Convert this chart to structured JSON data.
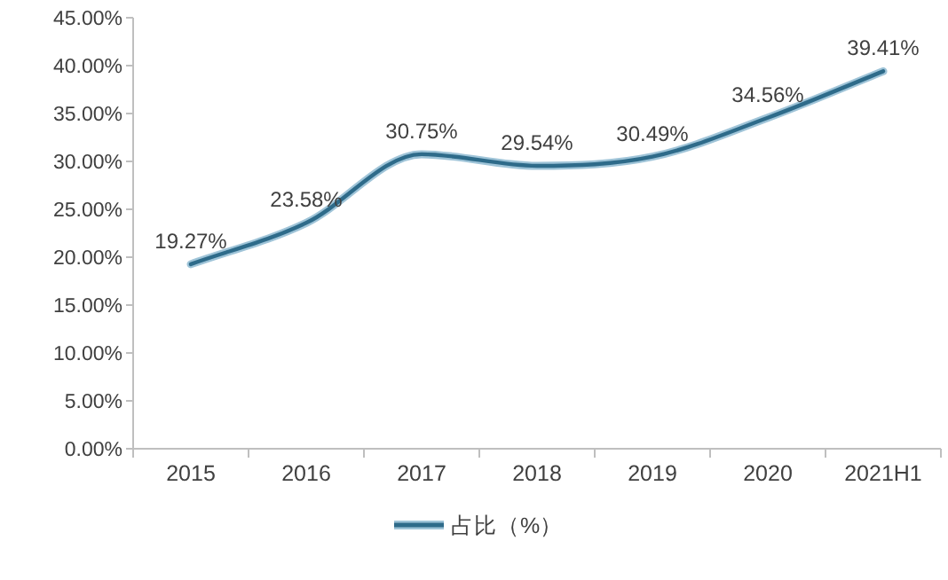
{
  "chart_data": {
    "type": "line",
    "categories": [
      "2015",
      "2016",
      "2017",
      "2018",
      "2019",
      "2020",
      "2021H1"
    ],
    "series": [
      {
        "name": "占比（%）",
        "color": "#2e6b8a",
        "values": [
          19.27,
          23.58,
          30.75,
          29.54,
          30.49,
          34.56,
          39.41
        ],
        "value_labels": [
          "19.27%",
          "23.58%",
          "30.75%",
          "29.54%",
          "30.49%",
          "34.56%",
          "39.41%"
        ]
      }
    ],
    "ylim": [
      0,
      45
    ],
    "yticks": [
      {
        "value": 0,
        "label": "0.00%"
      },
      {
        "value": 5,
        "label": "5.00%"
      },
      {
        "value": 10,
        "label": "10.00%"
      },
      {
        "value": 15,
        "label": "15.00%"
      },
      {
        "value": 20,
        "label": "20.00%"
      },
      {
        "value": 25,
        "label": "25.00%"
      },
      {
        "value": 30,
        "label": "30.00%"
      },
      {
        "value": 35,
        "label": "35.00%"
      },
      {
        "value": 40,
        "label": "40.00%"
      },
      {
        "value": 45,
        "label": "45.00%"
      }
    ],
    "grid": false,
    "legend": "bottom",
    "marker": "none",
    "line_style": "solid"
  }
}
